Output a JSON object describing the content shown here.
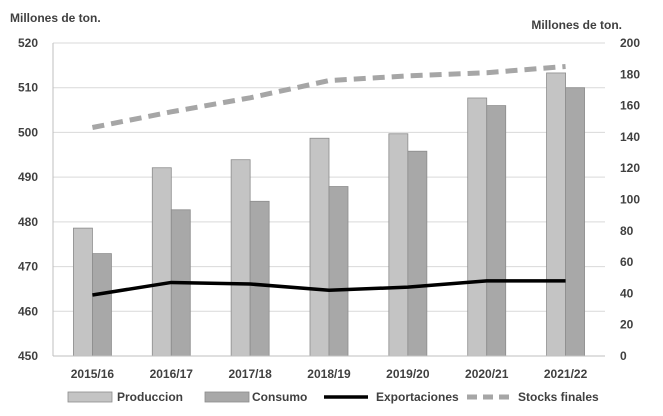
{
  "chart_data": {
    "type": "bar",
    "categories": [
      "2015/16",
      "2016/17",
      "2017/18",
      "2018/19",
      "2019/20",
      "2020/21",
      "2021/22"
    ],
    "ylabel_left": "Millones de ton.",
    "ylabel_right": "Millones de ton.",
    "ylim_left": [
      450,
      520
    ],
    "ylim_right": [
      0,
      200
    ],
    "yticks_left": [
      450,
      460,
      470,
      480,
      490,
      500,
      510,
      520
    ],
    "yticks_right": [
      0,
      20,
      40,
      60,
      80,
      100,
      120,
      140,
      160,
      180,
      200
    ],
    "grid": true,
    "legend_position": "bottom",
    "series": [
      {
        "name": "Produccion",
        "type": "bar",
        "axis": "left",
        "color": "#c4c4c4",
        "values": [
          478.6,
          492.1,
          493.9,
          498.7,
          499.7,
          507.7,
          513.3
        ]
      },
      {
        "name": "Consumo",
        "type": "bar",
        "axis": "left",
        "color": "#a8a8a8",
        "values": [
          472.9,
          482.7,
          484.6,
          487.9,
          495.8,
          506.0,
          510.0
        ]
      },
      {
        "name": "Exportaciones",
        "type": "line",
        "axis": "right",
        "color": "#000000",
        "values": [
          39,
          47,
          46,
          42,
          44,
          48,
          48
        ]
      },
      {
        "name": "Stocks finales",
        "type": "line-dashed",
        "axis": "right",
        "color": "#a6a6a6",
        "values": [
          146,
          156,
          165,
          176,
          179,
          181,
          185
        ]
      }
    ]
  }
}
